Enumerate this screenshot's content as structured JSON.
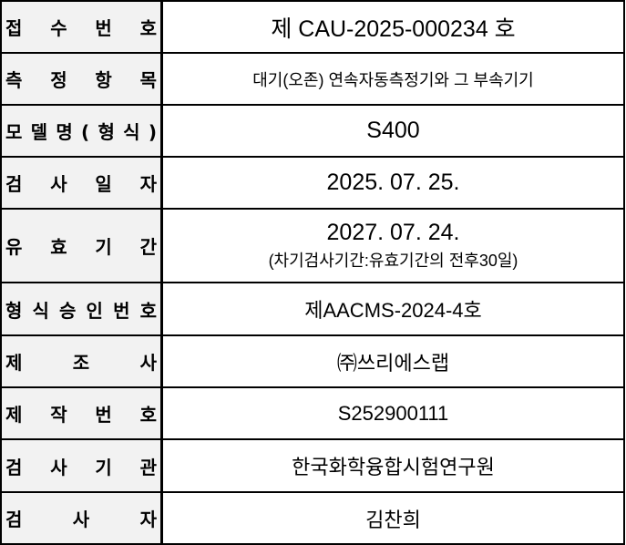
{
  "rows": [
    {
      "label": "접 수 번 호",
      "value": "제 CAU-2025-000234 호"
    },
    {
      "label": "측 정 항 목",
      "value": "대기(오존) 연속자동측정기와 그 부속기기"
    },
    {
      "label": "모 델 명 ( 형 식 )",
      "value": "S400"
    },
    {
      "label": "검 사 일 자",
      "value": "2025. 07. 25."
    },
    {
      "label": "유 효 기 간",
      "value": "2027. 07. 24.",
      "note": "(차기검사기간:유효기간의 전후30일)"
    },
    {
      "label": "형 식 승 인 번 호",
      "value": "제AACMS-2024-4호"
    },
    {
      "label": "제 조 사",
      "value": "㈜쓰리에스랩"
    },
    {
      "label": "제 작 번 호",
      "value": "S252900111"
    },
    {
      "label": "검 사 기 관",
      "value": "한국화학융합시험연구원"
    },
    {
      "label": "검 사 자",
      "value": "김찬희"
    }
  ]
}
